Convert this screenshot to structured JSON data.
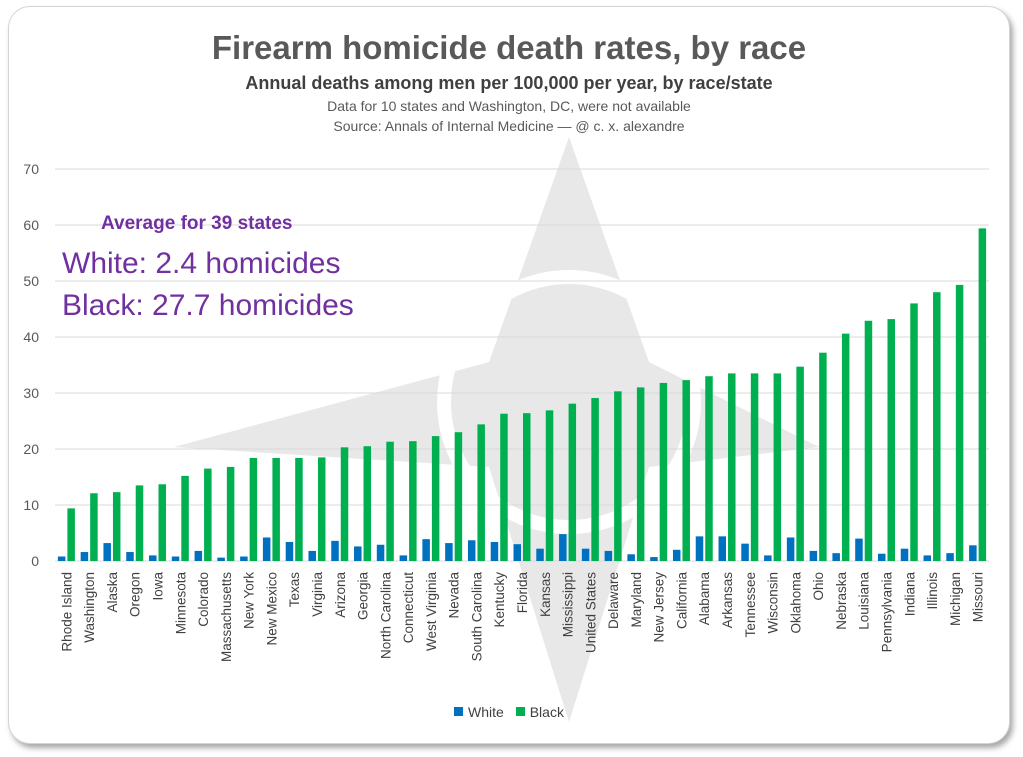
{
  "title": "Firearm homicide death rates, by race",
  "subtitle": "Annual deaths among men per 100,000 per year, by race/state",
  "note": "Data for 10 states and Washington, DC, were not available",
  "source": "Source: Annals of Internal Medicine — @ c. x. alexandre",
  "annotation": {
    "heading": "Average for 39 states",
    "white": "White: 2.4 homicides",
    "black": "Black: 27.7 homicides"
  },
  "colors": {
    "white": "#0070c0",
    "black": "#00b050",
    "grid": "#d9d9d9",
    "axis_text": "#595959",
    "watermark": "#e6e6e6"
  },
  "chart_data": {
    "type": "bar",
    "title": "Firearm homicide death rates, by race",
    "ylabel": "",
    "xlabel": "",
    "ylim": [
      0,
      70
    ],
    "yticks": [
      0,
      10,
      20,
      30,
      40,
      50,
      60,
      70
    ],
    "grid": true,
    "legend_position": "bottom",
    "categories": [
      "Rhode Island",
      "Washington",
      "Alaska",
      "Oregon",
      "Iowa",
      "Minnesota",
      "Colorado",
      "Massachusetts",
      "New York",
      "New Mexico",
      "Texas",
      "Virginia",
      "Arizona",
      "Georgia",
      "North Carolina",
      "Connecticut",
      "West Virginia",
      "Nevada",
      "South Carolina",
      "Kentucky",
      "Florida",
      "Kansas",
      "Mississippi",
      "United States",
      "Delaware",
      "Maryland",
      "New Jersey",
      "California",
      "Alabama",
      "Arkansas",
      "Tennessee",
      "Wisconsin",
      "Oklahoma",
      "Ohio",
      "Nebraska",
      "Louisiana",
      "Pennsylvania",
      "Indiana",
      "Illinois",
      "Michigan",
      "Missouri"
    ],
    "series": [
      {
        "name": "White",
        "values": [
          0.8,
          1.6,
          3.2,
          1.6,
          1.0,
          0.8,
          1.8,
          0.6,
          0.8,
          4.2,
          3.4,
          1.8,
          3.6,
          2.6,
          2.9,
          1.0,
          3.9,
          3.2,
          3.7,
          3.4,
          3.0,
          2.2,
          4.8,
          2.2,
          1.8,
          1.2,
          0.7,
          2.0,
          4.4,
          4.4,
          3.1,
          1.0,
          4.2,
          1.8,
          1.4,
          4.0,
          1.3,
          2.2,
          1.0,
          1.4,
          2.8
        ]
      },
      {
        "name": "Black",
        "values": [
          9.4,
          12.1,
          12.3,
          13.5,
          13.7,
          15.2,
          16.5,
          16.8,
          18.4,
          18.4,
          18.4,
          18.5,
          20.3,
          20.5,
          21.3,
          21.4,
          22.3,
          23.0,
          24.4,
          26.3,
          26.4,
          26.9,
          28.1,
          29.1,
          30.3,
          31.0,
          31.8,
          32.3,
          33.0,
          33.5,
          33.5,
          33.5,
          34.7,
          37.2,
          40.6,
          42.9,
          43.2,
          46.0,
          48.0,
          49.3,
          59.4
        ]
      }
    ]
  },
  "legend": {
    "white_label": "White",
    "black_label": "Black"
  }
}
